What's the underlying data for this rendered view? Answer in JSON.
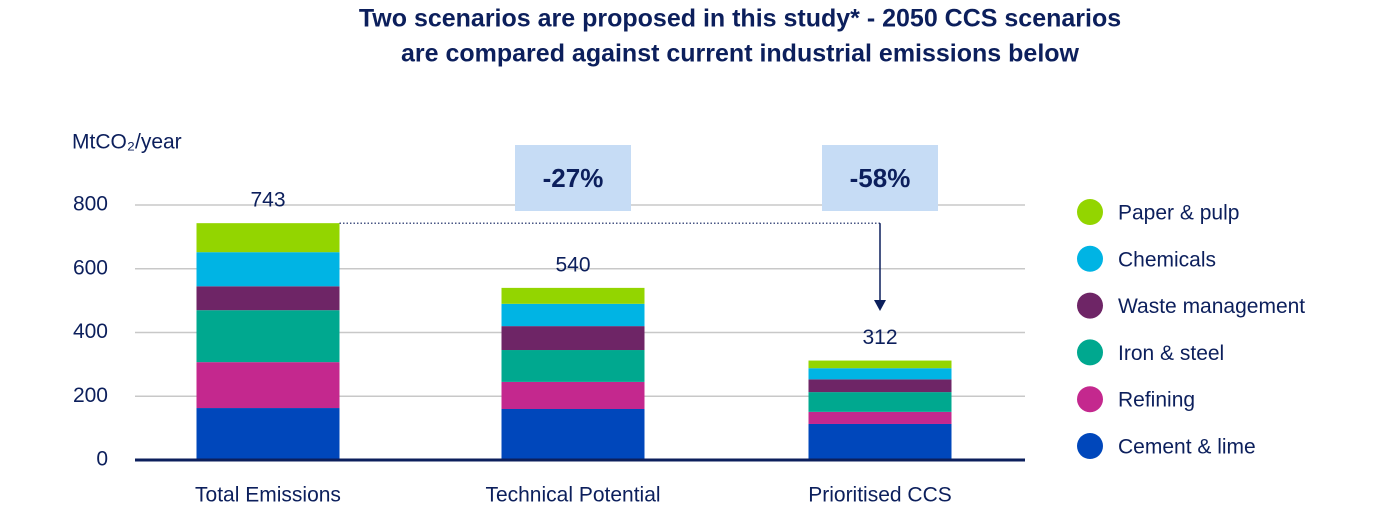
{
  "chart_data": {
    "type": "stacked_bar",
    "title": [
      "Two scenarios are proposed in this study* - 2050 CCS scenarios",
      "are compared against current industrial emissions below"
    ],
    "y_label": "MtCO₂/year",
    "categories": [
      "Total Emissions",
      "Technical Potential",
      "Prioritised CCS"
    ],
    "series": [
      {
        "name": "Cement & lime",
        "color": "#0047bb",
        "values": [
          163,
          160,
          113
        ]
      },
      {
        "name": "Refining",
        "color": "#c4288e",
        "values": [
          144,
          85,
          38
        ]
      },
      {
        "name": "Iron & steel",
        "color": "#00a88f",
        "values": [
          163,
          100,
          62
        ]
      },
      {
        "name": "Waste management",
        "color": "#6e2566",
        "values": [
          75,
          75,
          40
        ]
      },
      {
        "name": "Chemicals",
        "color": "#00b4e4",
        "values": [
          107,
          70,
          35
        ]
      },
      {
        "name": "Paper & pulp",
        "color": "#93d500",
        "values": [
          91,
          50,
          24
        ]
      }
    ],
    "totals": [
      743,
      540,
      312
    ],
    "annotations": [
      "-27%",
      "-58%"
    ],
    "ylim": [
      0,
      800
    ],
    "yticks": [
      0,
      200,
      400,
      600,
      800
    ],
    "grid": true,
    "legend": "right"
  }
}
